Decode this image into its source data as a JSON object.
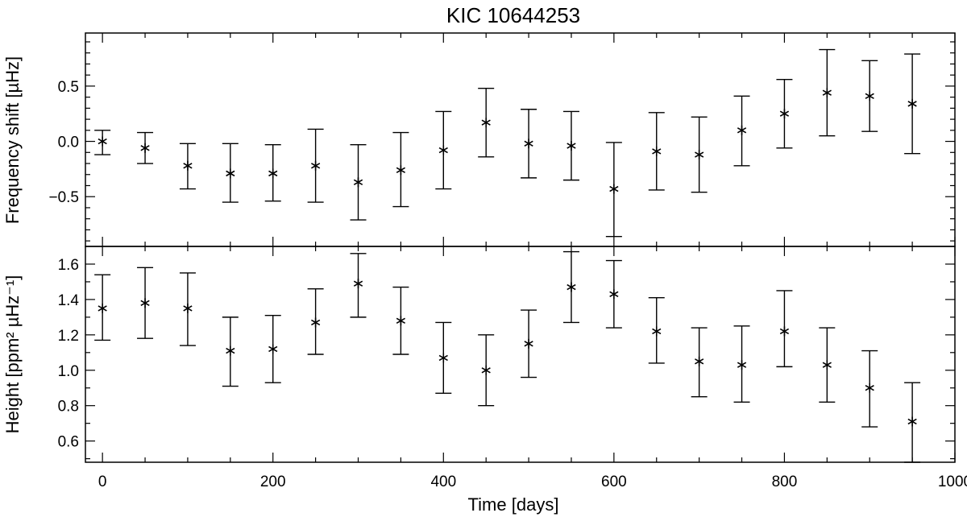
{
  "chart_data": [
    {
      "type": "scatter",
      "title": "KIC 10644253",
      "ylabel": "Frequency shift [µHz]",
      "xlabel": "",
      "xlim": [
        -20,
        1000
      ],
      "ylim": [
        -0.95,
        0.98
      ],
      "yticks": [
        -0.5,
        0.0,
        0.5
      ],
      "ytick_labels": [
        "−0.5",
        "0.0",
        "0.5"
      ],
      "xticks": [
        0,
        200,
        400,
        600,
        800,
        1000
      ],
      "points": [
        {
          "x": 0,
          "y": 0.0,
          "ylow": -0.12,
          "yhigh": 0.1
        },
        {
          "x": 50,
          "y": -0.06,
          "ylow": -0.2,
          "yhigh": 0.08
        },
        {
          "x": 100,
          "y": -0.22,
          "ylow": -0.43,
          "yhigh": -0.02
        },
        {
          "x": 150,
          "y": -0.29,
          "ylow": -0.55,
          "yhigh": -0.02
        },
        {
          "x": 200,
          "y": -0.29,
          "ylow": -0.54,
          "yhigh": -0.03
        },
        {
          "x": 250,
          "y": -0.22,
          "ylow": -0.55,
          "yhigh": 0.11
        },
        {
          "x": 300,
          "y": -0.37,
          "ylow": -0.71,
          "yhigh": -0.03
        },
        {
          "x": 350,
          "y": -0.26,
          "ylow": -0.59,
          "yhigh": 0.08
        },
        {
          "x": 400,
          "y": -0.08,
          "ylow": -0.43,
          "yhigh": 0.27
        },
        {
          "x": 450,
          "y": 0.17,
          "ylow": -0.14,
          "yhigh": 0.48
        },
        {
          "x": 500,
          "y": -0.02,
          "ylow": -0.33,
          "yhigh": 0.29
        },
        {
          "x": 550,
          "y": -0.04,
          "ylow": -0.35,
          "yhigh": 0.27
        },
        {
          "x": 600,
          "y": -0.43,
          "ylow": -0.86,
          "yhigh": -0.01
        },
        {
          "x": 650,
          "y": -0.09,
          "ylow": -0.44,
          "yhigh": 0.26
        },
        {
          "x": 700,
          "y": -0.12,
          "ylow": -0.46,
          "yhigh": 0.22
        },
        {
          "x": 750,
          "y": 0.1,
          "ylow": -0.22,
          "yhigh": 0.41
        },
        {
          "x": 800,
          "y": 0.25,
          "ylow": -0.06,
          "yhigh": 0.56
        },
        {
          "x": 850,
          "y": 0.44,
          "ylow": 0.05,
          "yhigh": 0.83
        },
        {
          "x": 900,
          "y": 0.41,
          "ylow": 0.09,
          "yhigh": 0.73
        },
        {
          "x": 950,
          "y": 0.34,
          "ylow": -0.11,
          "yhigh": 0.79
        }
      ]
    },
    {
      "type": "scatter",
      "title": "",
      "ylabel": "Height [ppm² µHz⁻¹]",
      "xlabel": "Time [days]",
      "xlim": [
        -20,
        1000
      ],
      "ylim": [
        0.48,
        1.7
      ],
      "yticks": [
        0.6,
        0.8,
        1.0,
        1.2,
        1.4,
        1.6
      ],
      "ytick_labels": [
        "0.6",
        "0.8",
        "1.0",
        "1.2",
        "1.4",
        "1.6"
      ],
      "xticks": [
        0,
        200,
        400,
        600,
        800,
        1000
      ],
      "xtick_labels": [
        "0",
        "200",
        "400",
        "600",
        "800",
        "1000"
      ],
      "points": [
        {
          "x": 0,
          "y": 1.35,
          "ylow": 1.17,
          "yhigh": 1.54
        },
        {
          "x": 50,
          "y": 1.38,
          "ylow": 1.18,
          "yhigh": 1.58
        },
        {
          "x": 100,
          "y": 1.35,
          "ylow": 1.14,
          "yhigh": 1.55
        },
        {
          "x": 150,
          "y": 1.11,
          "ylow": 0.91,
          "yhigh": 1.3
        },
        {
          "x": 200,
          "y": 1.12,
          "ylow": 0.93,
          "yhigh": 1.31
        },
        {
          "x": 250,
          "y": 1.27,
          "ylow": 1.09,
          "yhigh": 1.46
        },
        {
          "x": 300,
          "y": 1.49,
          "ylow": 1.3,
          "yhigh": 1.66
        },
        {
          "x": 350,
          "y": 1.28,
          "ylow": 1.09,
          "yhigh": 1.47
        },
        {
          "x": 400,
          "y": 1.07,
          "ylow": 0.87,
          "yhigh": 1.27
        },
        {
          "x": 450,
          "y": 1.0,
          "ylow": 0.8,
          "yhigh": 1.2
        },
        {
          "x": 500,
          "y": 1.15,
          "ylow": 0.96,
          "yhigh": 1.34
        },
        {
          "x": 550,
          "y": 1.47,
          "ylow": 1.27,
          "yhigh": 1.67
        },
        {
          "x": 600,
          "y": 1.43,
          "ylow": 1.24,
          "yhigh": 1.62
        },
        {
          "x": 650,
          "y": 1.22,
          "ylow": 1.04,
          "yhigh": 1.41
        },
        {
          "x": 700,
          "y": 1.05,
          "ylow": 0.85,
          "yhigh": 1.24
        },
        {
          "x": 750,
          "y": 1.03,
          "ylow": 0.82,
          "yhigh": 1.25
        },
        {
          "x": 800,
          "y": 1.22,
          "ylow": 1.02,
          "yhigh": 1.45
        },
        {
          "x": 850,
          "y": 1.03,
          "ylow": 0.82,
          "yhigh": 1.24
        },
        {
          "x": 900,
          "y": 0.9,
          "ylow": 0.68,
          "yhigh": 1.11
        },
        {
          "x": 950,
          "y": 0.71,
          "ylow": 0.48,
          "yhigh": 0.93
        }
      ]
    }
  ]
}
